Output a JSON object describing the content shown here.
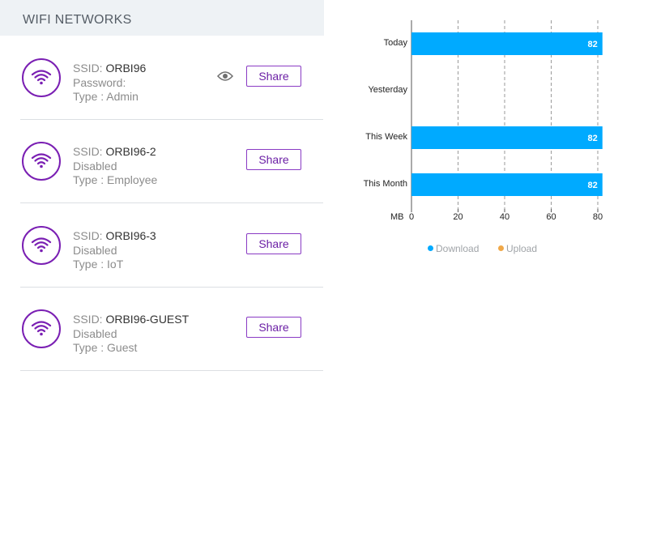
{
  "wifi": {
    "header": "WIFI NETWORKS",
    "share_label": "Share",
    "ssid_prefix": "SSID:",
    "networks": [
      {
        "ssid": "ORBI96",
        "line2": "Password:",
        "line3": "Type : Admin",
        "show_eye": true
      },
      {
        "ssid": "ORBI96-2",
        "line2": "Disabled",
        "line3": "Type : Employee",
        "show_eye": false
      },
      {
        "ssid": "ORBI96-3",
        "line2": "Disabled",
        "line3": "Type : IoT",
        "show_eye": false
      },
      {
        "ssid": "ORBI96-GUEST",
        "line2": "Disabled",
        "line3": "Type : Guest",
        "show_eye": false
      }
    ],
    "accent_color": "#7a1fb3"
  },
  "chart_data": {
    "type": "bar",
    "orientation": "horizontal",
    "categories": [
      "Today",
      "Yesterday",
      "This Week",
      "This Month"
    ],
    "series": [
      {
        "name": "Download",
        "color": "#00aaff",
        "values": [
          82,
          null,
          82,
          82
        ]
      },
      {
        "name": "Upload",
        "color": "#f0a848",
        "values": [
          null,
          null,
          null,
          null
        ]
      }
    ],
    "data_labels": [
      "82",
      "",
      "82",
      "82"
    ],
    "xlabel": "MB",
    "xlim": [
      0,
      82
    ],
    "xticks": [
      0,
      20,
      40,
      60,
      80
    ],
    "grid": "vertical dashed",
    "legend_position": "bottom-center"
  }
}
